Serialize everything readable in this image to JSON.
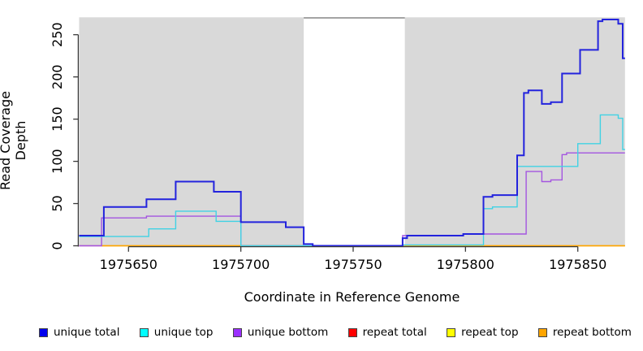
{
  "chart_data": {
    "type": "line",
    "subtype": "step",
    "title": "",
    "xlabel": "Coordinate in Reference Genome",
    "ylabel": "Read Coverage Depth",
    "xlim": [
      1975628,
      1975871
    ],
    "ylim": [
      0,
      271
    ],
    "x_ticks": [
      1975650,
      1975700,
      1975750,
      1975800,
      1975850
    ],
    "y_ticks": [
      0,
      50,
      100,
      150,
      200,
      250
    ],
    "grid": false,
    "panel_bg": "#d9d9d9",
    "axis_color": "#3a3a3a",
    "gap_region": {
      "x0": 1975728,
      "x1": 1975773,
      "fill": "#ffffff",
      "top_border": "#9a9a9a"
    },
    "legend_position": "bottom",
    "series": [
      {
        "name": "repeat total",
        "color": "#e03434",
        "width": 1.3,
        "layer": "below-gap",
        "x_end": 1975871,
        "steps": [
          [
            1975628,
            0
          ]
        ]
      },
      {
        "name": "repeat top",
        "color": "#ffff00",
        "width": 1.3,
        "layer": "below-gap",
        "x_end": 1975871,
        "steps": [
          [
            1975638,
            0
          ]
        ]
      },
      {
        "name": "repeat bottom",
        "color": "#ffa500",
        "width": 1.6,
        "layer": "below-gap",
        "x_end": 1975871,
        "steps": [
          [
            1975638,
            0
          ]
        ]
      },
      {
        "name": "unique bottom",
        "color": "#a455e0",
        "width": 1.4,
        "layer": "above-gap",
        "x_end": 1975871,
        "steps": [
          [
            1975628,
            0
          ],
          [
            1975638,
            33
          ],
          [
            1975658,
            35
          ],
          [
            1975700,
            0
          ],
          [
            1975772,
            12
          ],
          [
            1975799,
            14
          ],
          [
            1975827,
            88
          ],
          [
            1975834,
            76
          ],
          [
            1975838,
            78
          ],
          [
            1975843,
            108
          ],
          [
            1975845,
            110
          ]
        ]
      },
      {
        "name": "unique top",
        "color": "#40d2e4",
        "width": 1.4,
        "layer": "above-gap",
        "x_end": 1975871,
        "steps": [
          [
            1975628,
            11
          ],
          [
            1975659,
            20
          ],
          [
            1975671,
            41
          ],
          [
            1975689,
            29
          ],
          [
            1975700,
            0
          ],
          [
            1975772,
            1
          ],
          [
            1975808,
            44
          ],
          [
            1975812,
            46
          ],
          [
            1975823,
            94
          ],
          [
            1975850,
            121
          ],
          [
            1975860,
            155
          ],
          [
            1975868,
            151
          ],
          [
            1975870,
            114
          ]
        ]
      },
      {
        "name": "unique total",
        "color": "#2323dd",
        "width": 2,
        "layer": "above-gap",
        "x_end": 1975871,
        "steps": [
          [
            1975628,
            12
          ],
          [
            1975639,
            46
          ],
          [
            1975658,
            55
          ],
          [
            1975671,
            76
          ],
          [
            1975688,
            64
          ],
          [
            1975700,
            28
          ],
          [
            1975720,
            22
          ],
          [
            1975728,
            2
          ],
          [
            1975732,
            0
          ],
          [
            1975772,
            9
          ],
          [
            1975774,
            12
          ],
          [
            1975799,
            14
          ],
          [
            1975808,
            58
          ],
          [
            1975812,
            60
          ],
          [
            1975823,
            107
          ],
          [
            1975826,
            181
          ],
          [
            1975828,
            184
          ],
          [
            1975834,
            168
          ],
          [
            1975838,
            170
          ],
          [
            1975843,
            204
          ],
          [
            1975851,
            232
          ],
          [
            1975859,
            266
          ],
          [
            1975861,
            268
          ],
          [
            1975868,
            263
          ],
          [
            1975870,
            222
          ]
        ]
      }
    ],
    "legend": [
      {
        "label": "unique total",
        "color": "#0000ee"
      },
      {
        "label": "unique top",
        "color": "#00ffff"
      },
      {
        "label": "unique bottom",
        "color": "#9b30ff"
      },
      {
        "label": "repeat total",
        "color": "#ff0000"
      },
      {
        "label": "repeat top",
        "color": "#ffff00"
      },
      {
        "label": "repeat bottom",
        "color": "#ffa500"
      }
    ]
  }
}
